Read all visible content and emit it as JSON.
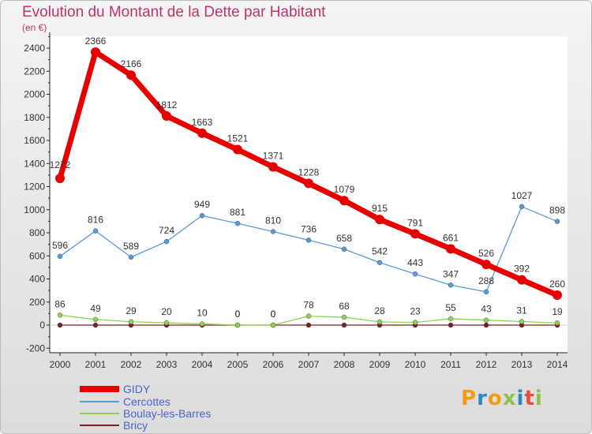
{
  "chart_data": {
    "type": "line",
    "title": "Evolution du Montant de la Dette par Habitant",
    "subtitle": "(en €)",
    "ylim": [
      -200,
      2500
    ],
    "y_ticks": [
      -200,
      0,
      200,
      400,
      600,
      800,
      1000,
      1200,
      1400,
      1600,
      1800,
      2000,
      2200,
      2400
    ],
    "x": [
      2000,
      2001,
      2002,
      2003,
      2004,
      2005,
      2006,
      2007,
      2008,
      2009,
      2010,
      2011,
      2012,
      2013,
      2014
    ],
    "grid": false,
    "legend_position": "bottom-left",
    "series": [
      {
        "name": "GIDY",
        "color": "#e60000",
        "values": [
          1272,
          2366,
          2166,
          1812,
          1663,
          1521,
          1371,
          1228,
          1079,
          915,
          791,
          661,
          526,
          392,
          260
        ]
      },
      {
        "name": "Cercottes",
        "color": "#5b9bd5",
        "values": [
          596,
          816,
          589,
          724,
          949,
          881,
          810,
          736,
          658,
          542,
          443,
          347,
          288,
          1027,
          898
        ]
      },
      {
        "name": "Boulay-les-Barres",
        "color": "#92d050",
        "values": [
          86,
          49,
          29,
          20,
          10,
          0,
          0,
          78,
          68,
          28,
          23,
          55,
          43,
          31,
          19
        ]
      },
      {
        "name": "Bricy",
        "color": "#7f1e1e",
        "values": [
          0,
          0,
          0,
          0,
          0,
          0,
          0,
          0,
          0,
          0,
          0,
          0,
          0,
          0,
          0
        ]
      }
    ]
  },
  "logo": {
    "text": "Proxiti",
    "colors": [
      "#f39c12",
      "#2e86c1",
      "#f39c12",
      "#8bc34a",
      "#2e86c1",
      "#e74c3c",
      "#8bc34a"
    ]
  }
}
